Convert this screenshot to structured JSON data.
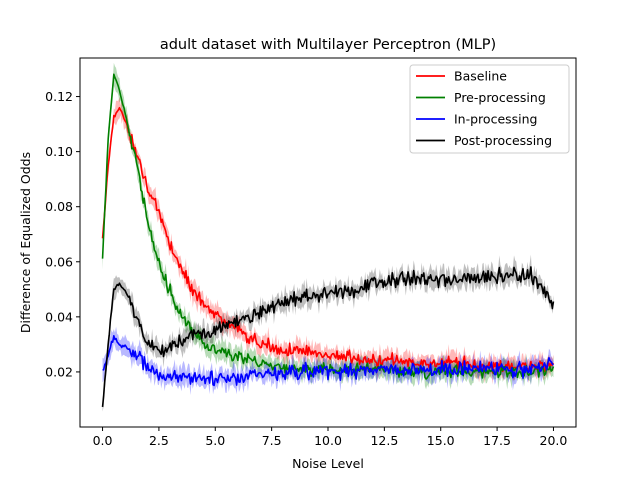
{
  "chart_data": {
    "type": "line",
    "title": "adult dataset with Multilayer Perceptron (MLP)",
    "xlabel": "Noise Level",
    "ylabel": "Difference of Equalized Odds",
    "xlim": [
      -1.0,
      21.0
    ],
    "ylim": [
      0.0,
      0.134
    ],
    "x_ticks": [
      0.0,
      2.5,
      5.0,
      7.5,
      10.0,
      12.5,
      15.0,
      17.5,
      20.0
    ],
    "x_tick_labels": [
      "0.0",
      "2.5",
      "5.0",
      "7.5",
      "10.0",
      "12.5",
      "15.0",
      "17.5",
      "20.0"
    ],
    "y_ticks": [
      0.02,
      0.04,
      0.06,
      0.08,
      0.1,
      0.12
    ],
    "y_tick_labels": [
      "0.02",
      "0.04",
      "0.06",
      "0.08",
      "0.10",
      "0.12"
    ],
    "grid": false,
    "legend_position": "top-right",
    "x": [
      0.0,
      0.25,
      0.5,
      0.75,
      1.0,
      1.5,
      2.0,
      2.5,
      3.0,
      3.5,
      4.0,
      4.5,
      5.0,
      6.0,
      7.0,
      8.0,
      9.0,
      10.0,
      11.0,
      12.0,
      13.0,
      14.0,
      15.0,
      16.0,
      17.0,
      18.0,
      19.0,
      20.0
    ],
    "series": [
      {
        "name": "Baseline",
        "color": "#ff0000",
        "values": [
          0.068,
          0.095,
          0.113,
          0.116,
          0.111,
          0.1,
          0.087,
          0.077,
          0.066,
          0.057,
          0.05,
          0.045,
          0.041,
          0.035,
          0.03,
          0.028,
          0.027,
          0.026,
          0.025,
          0.024,
          0.024,
          0.023,
          0.023,
          0.023,
          0.022,
          0.022,
          0.022,
          0.023
        ]
      },
      {
        "name": "Pre-processing",
        "color": "#008000",
        "values": [
          0.061,
          0.105,
          0.128,
          0.122,
          0.114,
          0.096,
          0.075,
          0.06,
          0.049,
          0.041,
          0.035,
          0.031,
          0.028,
          0.025,
          0.023,
          0.022,
          0.021,
          0.021,
          0.021,
          0.021,
          0.02,
          0.02,
          0.02,
          0.02,
          0.02,
          0.02,
          0.02,
          0.021
        ]
      },
      {
        "name": "In-processing",
        "color": "#0000ff",
        "values": [
          0.02,
          0.026,
          0.033,
          0.03,
          0.029,
          0.027,
          0.022,
          0.019,
          0.018,
          0.018,
          0.018,
          0.018,
          0.018,
          0.018,
          0.019,
          0.019,
          0.02,
          0.02,
          0.02,
          0.021,
          0.021,
          0.021,
          0.021,
          0.021,
          0.021,
          0.021,
          0.021,
          0.023
        ]
      },
      {
        "name": "Post-processing",
        "color": "#000000",
        "values": [
          0.007,
          0.03,
          0.05,
          0.052,
          0.05,
          0.04,
          0.03,
          0.028,
          0.029,
          0.031,
          0.033,
          0.034,
          0.036,
          0.039,
          0.042,
          0.045,
          0.047,
          0.048,
          0.05,
          0.052,
          0.054,
          0.054,
          0.054,
          0.054,
          0.054,
          0.055,
          0.055,
          0.045
        ]
      }
    ]
  }
}
